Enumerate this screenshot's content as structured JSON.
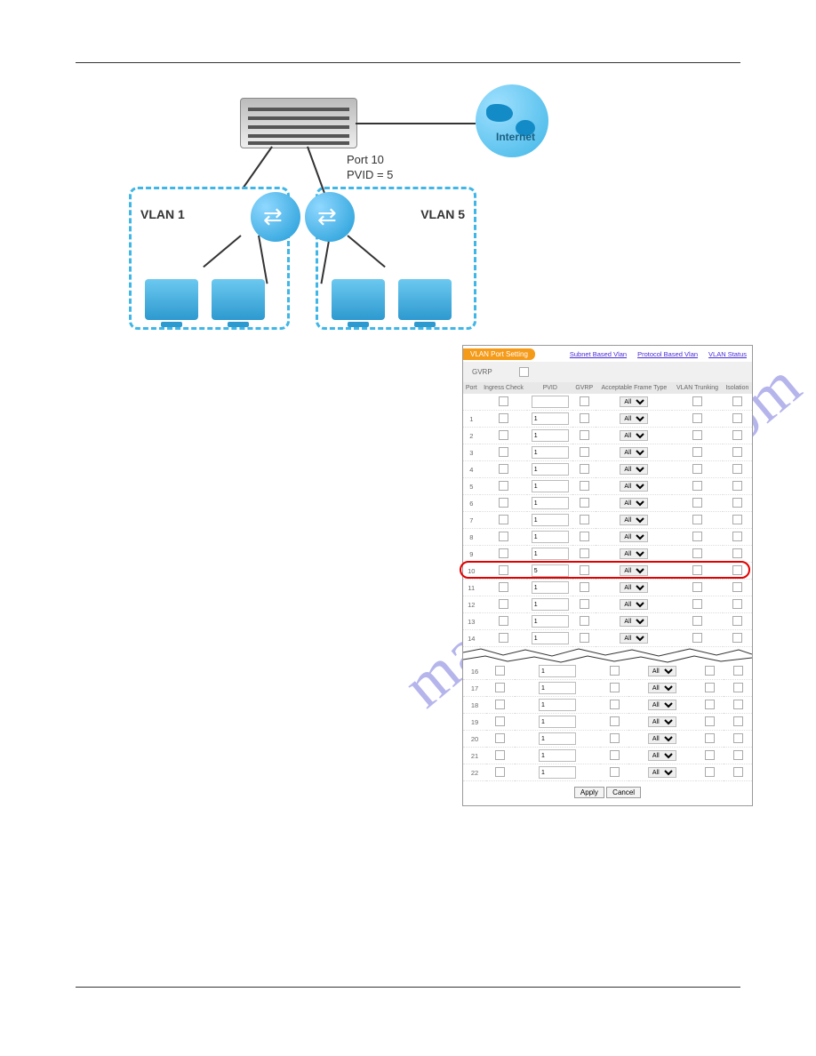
{
  "diagram": {
    "internet_label": "Internet",
    "port_label_line1": "Port 10",
    "port_label_line2": "PVID =  5",
    "vlan1_label": "VLAN 1",
    "vlan5_label": "VLAN 5"
  },
  "panel": {
    "title": "VLAN Port Setting",
    "links": {
      "subnet": "Subnet Based Vlan",
      "protocol": "Protocol Based Vlan",
      "status": "VLAN Status"
    },
    "gvrp_label": "GVRP",
    "columns": {
      "port": "Port",
      "ingress": "Ingress Check",
      "pvid": "PVID",
      "gvrp": "GVRP",
      "frame": "Acceptable Frame Type",
      "trunk": "VLAN Trunking",
      "iso": "Isolation"
    },
    "frame_option": "All",
    "highlight_port": 10,
    "rows_top": [
      {
        "port": "1",
        "pvid": "1"
      },
      {
        "port": "2",
        "pvid": "1"
      },
      {
        "port": "3",
        "pvid": "1"
      },
      {
        "port": "4",
        "pvid": "1"
      },
      {
        "port": "5",
        "pvid": "1"
      },
      {
        "port": "6",
        "pvid": "1"
      },
      {
        "port": "7",
        "pvid": "1"
      },
      {
        "port": "8",
        "pvid": "1"
      },
      {
        "port": "9",
        "pvid": "1"
      },
      {
        "port": "10",
        "pvid": "5"
      },
      {
        "port": "11",
        "pvid": "1"
      },
      {
        "port": "12",
        "pvid": "1"
      },
      {
        "port": "13",
        "pvid": "1"
      },
      {
        "port": "14",
        "pvid": "1"
      }
    ],
    "rows_bottom": [
      {
        "port": "16",
        "pvid": "1"
      },
      {
        "port": "17",
        "pvid": "1"
      },
      {
        "port": "18",
        "pvid": "1"
      },
      {
        "port": "19",
        "pvid": "1"
      },
      {
        "port": "20",
        "pvid": "1"
      },
      {
        "port": "21",
        "pvid": "1"
      },
      {
        "port": "22",
        "pvid": "1"
      }
    ],
    "buttons": {
      "apply": "Apply",
      "cancel": "Cancel"
    },
    "colors": {
      "title_bg": "#f59b1a",
      "link": "#4a2bd6",
      "highlight": "#e30000",
      "header_bg": "#e8e8e8",
      "row_border": "#dddddd"
    }
  },
  "watermark": "manualshiver.com"
}
